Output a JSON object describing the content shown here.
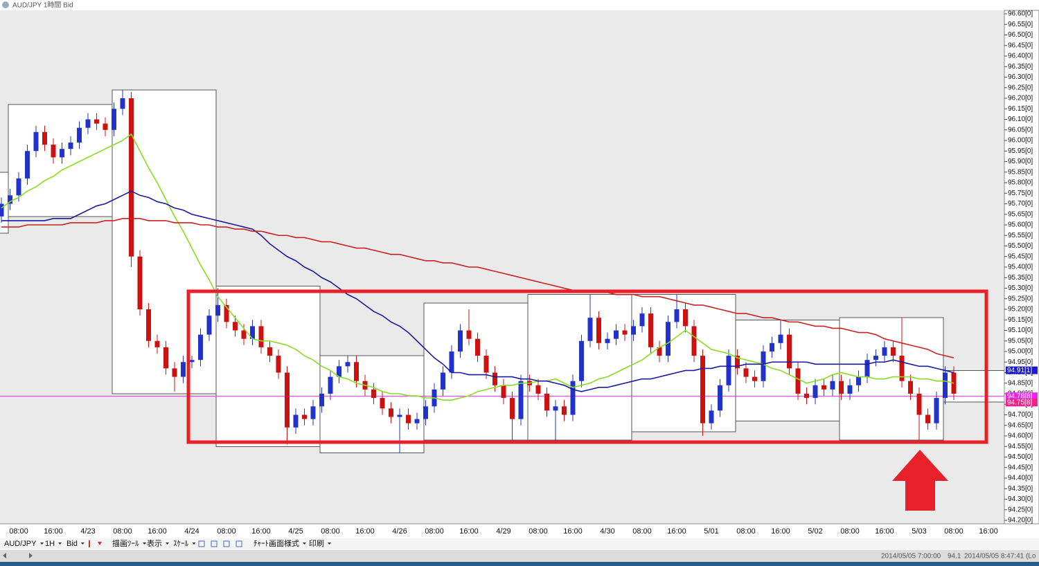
{
  "window": {
    "title": "AUD/JPY 1時間 Bid"
  },
  "toolbar": [
    "AUD/JPY",
    "1H",
    "Bid",
    "描画ﾂｰﾙ",
    "表示",
    "ｽｹｰﾙ",
    "ﾁｬｰﾄ画面様式",
    "印刷"
  ],
  "status": [
    "2014/05/05 7:00:00",
    "94.1",
    "2014/05/05 8:47:41 (Lo"
  ],
  "chart_data": {
    "type": "candlestick",
    "up_color": "#2233cc",
    "down_color": "#cc1111",
    "categories": [
      null,
      null,
      "08:00",
      null,
      null,
      null,
      "16:00",
      null,
      null,
      null,
      "4/23",
      null,
      null,
      null,
      "08:00",
      null,
      null,
      null,
      "16:00",
      null,
      null,
      null,
      "4/24",
      null,
      null,
      null,
      "08:00",
      null,
      null,
      null,
      "16:00",
      null,
      null,
      null,
      "4/25",
      null,
      null,
      null,
      "08:00",
      null,
      null,
      null,
      "16:00",
      null,
      null,
      null,
      "4/26",
      null,
      null,
      null,
      "08:00",
      null,
      null,
      null,
      "16:00",
      null,
      null,
      null,
      "4/29",
      null,
      null,
      null,
      "08:00",
      null,
      null,
      null,
      "16:00",
      null,
      null,
      null,
      "4/30",
      null,
      null,
      null,
      "08:00",
      null,
      null,
      null,
      "16:00",
      null,
      null,
      null,
      "5/01",
      null,
      null,
      null,
      "08:00",
      null,
      null,
      null,
      "16:00",
      null,
      null,
      null,
      "5/02",
      null,
      null,
      null,
      "08:00",
      null,
      null,
      null,
      "16:00",
      null,
      null,
      null,
      "5/03",
      null,
      null,
      null,
      "08:00",
      null,
      null,
      null,
      "16:00"
    ],
    "open": [
      95.64,
      95.7,
      95.74,
      95.82,
      95.95,
      96.04,
      95.98,
      95.92,
      95.96,
      95.99,
      96.06,
      96.1,
      96.08,
      96.05,
      96.15,
      96.2,
      95.45,
      95.2,
      95.05,
      95.02,
      94.92,
      94.88,
      94.95,
      94.96,
      95.08,
      95.17,
      95.22,
      95.14,
      95.1,
      95.06,
      95.12,
      95.02,
      94.98,
      94.9,
      94.64,
      94.7,
      94.68,
      94.74,
      94.8,
      94.88,
      94.93,
      94.95,
      94.86,
      94.82,
      94.78,
      94.73,
      94.69,
      94.7,
      94.66,
      94.68,
      94.74,
      94.82,
      94.9,
      95.0,
      95.1,
      95.06,
      94.98,
      94.9,
      94.84,
      94.78,
      94.68,
      94.86,
      94.84,
      94.8,
      94.72,
      94.74,
      94.7,
      94.86,
      95.05,
      95.16,
      95.04,
      95.06,
      95.1,
      95.08,
      95.12,
      95.18,
      95.02,
      94.98,
      95.14,
      95.2,
      95.12,
      94.98,
      94.66,
      94.72,
      94.84,
      94.98,
      94.92,
      94.88,
      94.86,
      95.0,
      95.04,
      95.08,
      94.92,
      94.8,
      94.78,
      94.84,
      94.82,
      94.86,
      94.8,
      94.84,
      94.88,
      94.96,
      94.98,
      95.02,
      94.98,
      94.86,
      94.8,
      94.7,
      94.66,
      94.78,
      94.9,
      null,
      null,
      null,
      null
    ],
    "high": [
      95.73,
      95.77,
      95.85,
      95.98,
      96.07,
      96.07,
      96.01,
      95.99,
      96.02,
      96.09,
      96.13,
      96.13,
      96.11,
      96.18,
      96.24,
      96.23,
      95.48,
      95.23,
      95.08,
      95.05,
      94.95,
      94.98,
      94.98,
      95.11,
      95.2,
      95.3,
      95.25,
      95.17,
      95.13,
      95.15,
      95.15,
      95.05,
      95.01,
      94.93,
      94.73,
      94.73,
      94.77,
      94.83,
      94.91,
      94.96,
      94.98,
      94.98,
      94.89,
      94.85,
      94.81,
      94.76,
      94.73,
      94.73,
      94.71,
      94.77,
      94.85,
      94.93,
      95.03,
      95.13,
      95.2,
      95.09,
      95.01,
      94.93,
      94.87,
      94.81,
      94.89,
      94.89,
      94.87,
      94.83,
      94.77,
      94.77,
      94.89,
      95.08,
      95.27,
      95.19,
      95.09,
      95.13,
      95.13,
      95.15,
      95.21,
      95.21,
      95.05,
      95.17,
      95.27,
      95.23,
      95.15,
      95.01,
      94.75,
      94.87,
      95.01,
      95.01,
      94.95,
      94.91,
      95.03,
      95.07,
      95.15,
      95.11,
      94.95,
      94.83,
      94.87,
      94.87,
      94.89,
      94.89,
      94.87,
      94.91,
      94.99,
      95.01,
      95.05,
      95.05,
      95.16,
      94.89,
      94.83,
      94.73,
      94.81,
      94.93,
      94.93,
      null,
      null,
      null,
      null
    ],
    "low": [
      95.61,
      95.67,
      95.71,
      95.79,
      95.92,
      95.95,
      95.89,
      95.89,
      95.93,
      95.96,
      96.03,
      96.05,
      96.02,
      96.02,
      96.12,
      95.4,
      95.17,
      95.02,
      94.99,
      94.89,
      94.81,
      94.85,
      94.92,
      94.93,
      95.05,
      95.14,
      95.11,
      95.07,
      95.03,
      95.03,
      94.99,
      94.95,
      94.87,
      94.56,
      94.61,
      94.65,
      94.65,
      94.71,
      94.77,
      94.85,
      94.9,
      94.83,
      94.79,
      94.75,
      94.7,
      94.66,
      94.52,
      94.63,
      94.63,
      94.65,
      94.71,
      94.79,
      94.87,
      94.97,
      95.03,
      94.95,
      94.87,
      94.81,
      94.75,
      94.57,
      94.65,
      94.81,
      94.77,
      94.69,
      94.57,
      94.67,
      94.67,
      94.83,
      95.02,
      95.01,
      95.01,
      95.03,
      95.05,
      95.05,
      95.09,
      94.99,
      94.95,
      94.95,
      95.11,
      95.09,
      94.95,
      94.6,
      94.63,
      94.69,
      94.81,
      94.89,
      94.85,
      94.83,
      94.83,
      94.97,
      95.01,
      94.89,
      94.77,
      94.75,
      94.75,
      94.79,
      94.79,
      94.77,
      94.77,
      94.81,
      94.85,
      94.93,
      94.95,
      94.95,
      94.83,
      94.77,
      94.58,
      94.63,
      94.63,
      94.75,
      94.77,
      null,
      null,
      null,
      null
    ],
    "close": [
      95.7,
      95.74,
      95.82,
      95.95,
      96.04,
      95.98,
      95.92,
      95.96,
      95.99,
      96.06,
      96.1,
      96.08,
      96.05,
      96.15,
      96.2,
      95.45,
      95.2,
      95.05,
      95.02,
      94.92,
      94.88,
      94.95,
      94.96,
      95.08,
      95.17,
      95.22,
      95.14,
      95.1,
      95.06,
      95.12,
      95.02,
      94.98,
      94.9,
      94.64,
      94.7,
      94.68,
      94.74,
      94.8,
      94.88,
      94.93,
      94.95,
      94.86,
      94.82,
      94.78,
      94.73,
      94.69,
      94.7,
      94.66,
      94.68,
      94.74,
      94.82,
      94.9,
      95.0,
      95.1,
      95.06,
      94.98,
      94.9,
      94.84,
      94.78,
      94.68,
      94.86,
      94.84,
      94.8,
      94.72,
      94.74,
      94.7,
      94.86,
      95.05,
      95.16,
      95.04,
      95.06,
      95.1,
      95.08,
      95.12,
      95.18,
      95.02,
      94.98,
      95.14,
      95.2,
      95.12,
      94.98,
      94.66,
      94.72,
      94.84,
      94.98,
      94.92,
      94.88,
      94.86,
      95.0,
      95.04,
      95.08,
      94.92,
      94.8,
      94.78,
      94.84,
      94.82,
      94.86,
      94.8,
      94.84,
      94.88,
      94.96,
      94.98,
      95.02,
      94.98,
      94.86,
      94.8,
      94.7,
      94.66,
      94.78,
      94.9,
      94.8,
      null,
      null,
      null,
      null
    ],
    "series": [
      {
        "color": "#88dd22",
        "values": [
          95.68,
          95.71,
          95.73,
          95.76,
          95.78,
          95.81,
          95.83,
          95.86,
          95.88,
          95.9,
          95.92,
          95.94,
          95.96,
          95.98,
          96.0,
          96.03,
          95.95,
          95.87,
          95.8,
          95.72,
          95.64,
          95.57,
          95.49,
          95.41,
          95.34,
          95.26,
          95.21,
          95.16,
          95.11,
          95.06,
          95.05,
          95.05,
          95.04,
          95.03,
          95.01,
          94.98,
          94.96,
          94.93,
          94.91,
          94.88,
          94.87,
          94.85,
          94.84,
          94.83,
          94.81,
          94.8,
          94.8,
          94.79,
          94.79,
          94.78,
          94.78,
          94.77,
          94.77,
          94.78,
          94.79,
          94.81,
          94.82,
          94.83,
          94.84,
          94.84,
          94.85,
          94.85,
          94.86,
          94.86,
          94.87,
          94.85,
          94.83,
          94.84,
          94.85,
          94.87,
          94.88,
          94.9,
          94.92,
          94.94,
          94.96,
          94.99,
          95.02,
          95.04,
          95.07,
          95.1,
          95.07,
          95.04,
          95.01,
          95.0,
          94.99,
          94.97,
          94.96,
          94.95,
          94.94,
          94.92,
          94.91,
          94.89,
          94.87,
          94.85,
          94.86,
          94.87,
          94.89,
          94.9,
          94.89,
          94.88,
          94.88,
          94.87,
          94.87,
          94.88,
          94.88,
          94.88,
          94.87,
          94.87,
          94.86,
          94.86,
          94.85,
          null,
          null,
          null,
          null
        ]
      },
      {
        "color": "#1a1aa0",
        "values": [
          95.62,
          95.62,
          95.62,
          95.62,
          95.62,
          95.62,
          95.63,
          95.63,
          95.63,
          95.65,
          95.67,
          95.69,
          95.7,
          95.72,
          95.74,
          95.76,
          95.74,
          95.73,
          95.71,
          95.7,
          95.68,
          95.67,
          95.65,
          95.64,
          95.63,
          95.62,
          95.61,
          95.6,
          95.59,
          95.58,
          95.55,
          95.51,
          95.48,
          95.45,
          95.43,
          95.4,
          95.38,
          95.35,
          95.33,
          95.3,
          95.27,
          95.25,
          95.22,
          95.19,
          95.17,
          95.14,
          95.12,
          95.09,
          95.05,
          95.01,
          94.97,
          94.94,
          94.9,
          94.9,
          94.89,
          94.89,
          94.89,
          94.88,
          94.88,
          94.88,
          94.87,
          94.87,
          94.86,
          94.86,
          94.85,
          94.84,
          94.82,
          94.81,
          94.82,
          94.83,
          94.83,
          94.84,
          94.85,
          94.86,
          94.87,
          94.87,
          94.88,
          94.89,
          94.9,
          94.91,
          94.91,
          94.92,
          94.92,
          94.93,
          94.93,
          94.93,
          94.94,
          94.94,
          94.94,
          94.95,
          94.95,
          94.95,
          94.95,
          94.95,
          94.94,
          94.94,
          94.94,
          94.94,
          94.94,
          94.94,
          94.94,
          94.95,
          94.95,
          94.96,
          94.95,
          94.94,
          94.93,
          94.93,
          94.92,
          94.91,
          94.9,
          null,
          null,
          null,
          null
        ]
      },
      {
        "color": "#cc2020",
        "values": [
          95.59,
          95.59,
          95.59,
          95.6,
          95.6,
          95.6,
          95.6,
          95.6,
          95.61,
          95.61,
          95.61,
          95.61,
          95.62,
          95.62,
          95.63,
          95.63,
          95.63,
          95.62,
          95.62,
          95.62,
          95.61,
          95.61,
          95.61,
          95.6,
          95.6,
          95.59,
          95.59,
          95.58,
          95.58,
          95.57,
          95.57,
          95.56,
          95.55,
          95.55,
          95.54,
          95.54,
          95.53,
          95.52,
          95.52,
          95.51,
          95.5,
          95.49,
          95.49,
          95.48,
          95.47,
          95.46,
          95.46,
          95.45,
          95.44,
          95.43,
          95.43,
          95.42,
          95.42,
          95.41,
          95.4,
          95.4,
          95.39,
          95.38,
          95.37,
          95.36,
          95.35,
          95.34,
          95.33,
          95.32,
          95.31,
          95.3,
          95.29,
          95.29,
          95.28,
          95.28,
          95.28,
          95.27,
          95.27,
          95.27,
          95.26,
          95.26,
          95.26,
          95.25,
          95.24,
          95.23,
          95.22,
          95.22,
          95.21,
          95.2,
          95.19,
          95.18,
          95.18,
          95.17,
          95.16,
          95.16,
          95.15,
          95.14,
          95.14,
          95.13,
          95.12,
          95.12,
          95.11,
          95.11,
          95.1,
          95.09,
          95.09,
          95.08,
          95.06,
          95.05,
          95.04,
          95.03,
          95.02,
          95.01,
          94.99,
          94.98,
          94.97,
          null,
          null,
          null,
          null
        ]
      }
    ],
    "day_ranges": [
      {
        "high": 95.85,
        "low": 95.56
      },
      {
        "high": 96.17,
        "low": 95.64
      },
      {
        "high": 96.24,
        "low": 94.8
      },
      {
        "high": 95.31,
        "low": 94.55
      },
      {
        "high": 94.98,
        "low": 94.52
      },
      {
        "high": 95.23,
        "low": 94.58
      },
      {
        "high": 95.27,
        "low": 94.58
      },
      {
        "high": 95.27,
        "low": 94.62
      },
      {
        "high": 95.15,
        "low": 94.67
      },
      {
        "high": 95.16,
        "low": 94.58
      },
      {
        "high": 94.91,
        "low": 94.76
      }
    ],
    "price_markers": [
      {
        "value": 94.911,
        "label": "94.91[1]",
        "color": "#1a1acc",
        "line": false
      },
      {
        "value": 94.788,
        "label": "94.78[8]",
        "color": "#ee22ee",
        "line": true
      },
      {
        "value": 94.758,
        "label": "94.75[8]",
        "color": "#ee2288",
        "line": false
      }
    ],
    "ylim": [
      94.2,
      96.6
    ],
    "yticks": [
      {
        "value": 94.2,
        "label": "94.20[0]"
      },
      {
        "value": 94.25,
        "label": "94.25[0]"
      },
      {
        "value": 94.3,
        "label": "94.30[0]"
      },
      {
        "value": 94.35,
        "label": "94.35[0]"
      },
      {
        "value": 94.4,
        "label": "94.40[0]"
      },
      {
        "value": 94.45,
        "label": "94.45[0]"
      },
      {
        "value": 94.5,
        "label": "94.50[0]"
      },
      {
        "value": 94.55,
        "label": "94.55[0]"
      },
      {
        "value": 94.6,
        "label": "94.60[0]"
      },
      {
        "value": 94.65,
        "label": "94.65[0]"
      },
      {
        "value": 94.7,
        "label": "94.70[0]"
      },
      {
        "value": 94.75,
        "label": "94.75[0]"
      },
      {
        "value": 94.8,
        "label": "94.80[0]"
      },
      {
        "value": 94.85,
        "label": "94.85[0]"
      },
      {
        "value": 94.9,
        "label": "94.90[0]"
      },
      {
        "value": 94.95,
        "label": "94.95[0]"
      },
      {
        "value": 95.0,
        "label": "95.00[0]"
      },
      {
        "value": 95.05,
        "label": "95.05[0]"
      },
      {
        "value": 95.1,
        "label": "95.10[0]"
      },
      {
        "value": 95.15,
        "label": "95.15[0]"
      },
      {
        "value": 95.2,
        "label": "95.20[0]"
      },
      {
        "value": 95.25,
        "label": "95.25[0]"
      },
      {
        "value": 95.3,
        "label": "95.30[0]"
      },
      {
        "value": 95.35,
        "label": "95.35[0]"
      },
      {
        "value": 95.4,
        "label": "95.40[0]"
      },
      {
        "value": 95.45,
        "label": "95.45[0]"
      },
      {
        "value": 95.5,
        "label": "95.50[0]"
      },
      {
        "value": 95.55,
        "label": "95.55[0]"
      },
      {
        "value": 95.6,
        "label": "95.60[0]"
      },
      {
        "value": 95.65,
        "label": "95.65[0]"
      },
      {
        "value": 95.7,
        "label": "95.70[0]"
      },
      {
        "value": 95.75,
        "label": "95.75[0]"
      },
      {
        "value": 95.8,
        "label": "95.80[0]"
      },
      {
        "value": 95.85,
        "label": "95.85[0]"
      },
      {
        "value": 95.9,
        "label": "95.90[0]"
      },
      {
        "value": 95.95,
        "label": "95.95[0]"
      },
      {
        "value": 96.0,
        "label": "96.00[0]"
      },
      {
        "value": 96.05,
        "label": "96.05[0]"
      },
      {
        "value": 96.1,
        "label": "96.10[0]"
      },
      {
        "value": 96.15,
        "label": "96.15[0]"
      },
      {
        "value": 96.2,
        "label": "96.20[0]"
      },
      {
        "value": 96.25,
        "label": "96.25[0]"
      },
      {
        "value": 96.3,
        "label": "96.30[0]"
      },
      {
        "value": 96.35,
        "label": "96.35[0]"
      },
      {
        "value": 96.4,
        "label": "96.40[0]"
      },
      {
        "value": 96.45,
        "label": "96.45[0]"
      },
      {
        "value": 96.5,
        "label": "96.50[0]"
      },
      {
        "value": 96.55,
        "label": "96.55[0]"
      },
      {
        "value": 96.6,
        "label": "96.60[0]"
      }
    ]
  }
}
